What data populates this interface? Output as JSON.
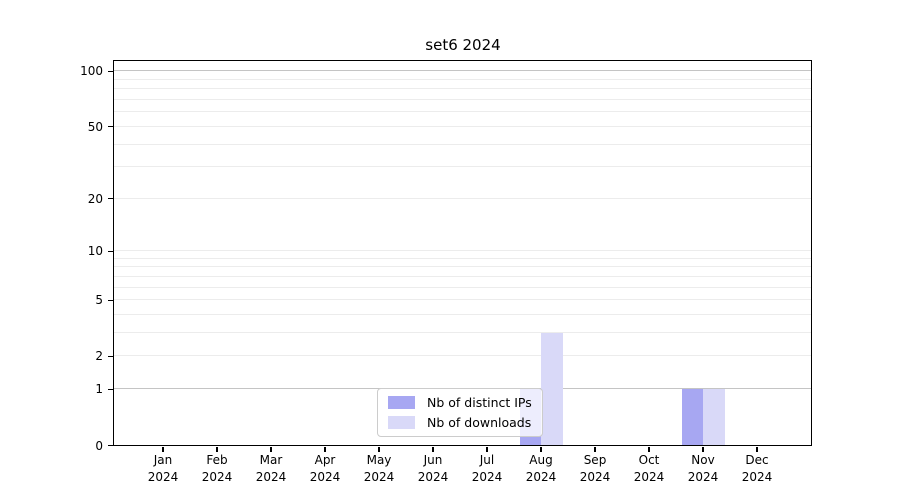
{
  "figure": {
    "background": "#ffffff",
    "title": "set6 2024"
  },
  "chart_data": {
    "type": "bar",
    "title": "set6 2024",
    "categories": [
      {
        "month": "Jan",
        "year": "2024"
      },
      {
        "month": "Feb",
        "year": "2024"
      },
      {
        "month": "Mar",
        "year": "2024"
      },
      {
        "month": "Apr",
        "year": "2024"
      },
      {
        "month": "May",
        "year": "2024"
      },
      {
        "month": "Jun",
        "year": "2024"
      },
      {
        "month": "Jul",
        "year": "2024"
      },
      {
        "month": "Aug",
        "year": "2024"
      },
      {
        "month": "Sep",
        "year": "2024"
      },
      {
        "month": "Oct",
        "year": "2024"
      },
      {
        "month": "Nov",
        "year": "2024"
      },
      {
        "month": "Dec",
        "year": "2024"
      }
    ],
    "series": [
      {
        "name": "Nb of distinct IPs",
        "color": "#a7a7f2",
        "values": [
          0,
          0,
          0,
          0,
          0,
          0,
          0,
          1,
          0,
          0,
          1,
          0
        ]
      },
      {
        "name": "Nb of downloads",
        "color": "#d9d9f8",
        "values": [
          0,
          0,
          0,
          0,
          0,
          0,
          0,
          3,
          0,
          0,
          1,
          0
        ]
      }
    ],
    "xlabel": "",
    "ylabel": "",
    "yscale": "log10(1+v)",
    "ylim": [
      0,
      113
    ],
    "ytick_values": [
      0,
      1,
      2,
      5,
      10,
      20,
      50,
      100
    ],
    "ytick_labels": [
      "0",
      "1",
      "2",
      "5",
      "10",
      "20",
      "50",
      "100"
    ],
    "grid_minor_values": [
      2,
      3,
      4,
      5,
      6,
      7,
      8,
      9,
      10,
      20,
      30,
      40,
      50,
      60,
      70,
      80,
      90
    ],
    "grid_emphasis_values": [
      1,
      100
    ],
    "grid": "horizontal",
    "legend_position": "lower center, inside axes"
  },
  "colors": {
    "grid_minor": "#ececec",
    "grid_emphasis": "#c4c4c4",
    "spine": "#000000",
    "legend_border": "#cccccc"
  }
}
